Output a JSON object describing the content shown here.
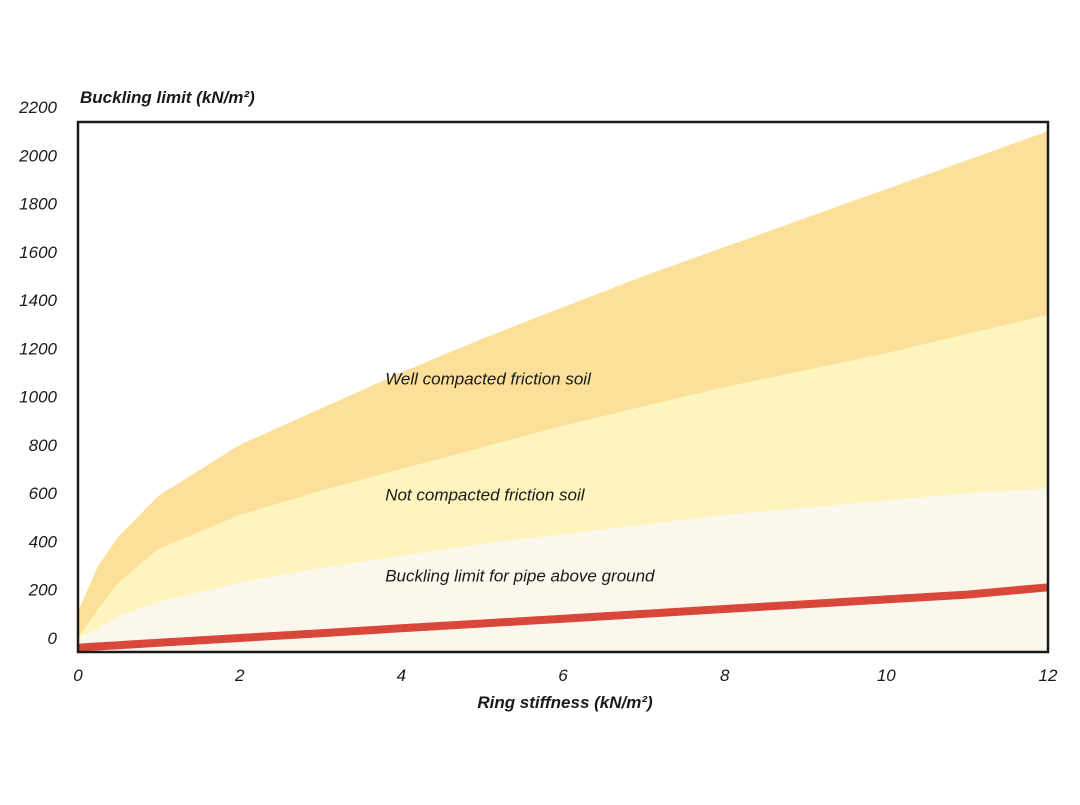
{
  "chart_data": {
    "type": "area",
    "title": "",
    "ylabel": "Buckling limit (kN/m²)",
    "xlabel": "Ring stiffness (kN/m²)",
    "xlim": [
      0,
      12
    ],
    "ylim": [
      -50,
      2200
    ],
    "x_ticks": [
      "0",
      "2",
      "4",
      "6",
      "8",
      "10",
      "12"
    ],
    "y_ticks": [
      "0",
      "200",
      "400",
      "600",
      "800",
      "1000",
      "1200",
      "1400",
      "1600",
      "1800",
      "2000",
      "2200"
    ],
    "x": [
      0,
      0.25,
      0.5,
      1,
      2,
      3,
      4,
      5,
      6,
      7,
      8,
      9,
      10,
      11,
      12
    ],
    "series": [
      {
        "name": "Well compacted friction soil",
        "color": "#fce09a",
        "values": [
          110,
          300,
          420,
          590,
          800,
          950,
          1100,
          1240,
          1370,
          1500,
          1620,
          1740,
          1860,
          1980,
          2100
        ]
      },
      {
        "name": "Not compacted friction soil",
        "color": "#fdf5bd",
        "values": [
          0,
          120,
          230,
          370,
          510,
          610,
          700,
          790,
          880,
          960,
          1040,
          1110,
          1180,
          1260,
          1340
        ]
      },
      {
        "name": "Buckling limit for pipe above ground",
        "color": "#fcf7ec",
        "values": [
          0,
          40,
          90,
          150,
          230,
          290,
          340,
          390,
          430,
          470,
          510,
          540,
          570,
          600,
          620
        ]
      },
      {
        "name": "Buckling limit for pipe above ground (line)",
        "color": "#d9473a",
        "values": [
          -40,
          -35,
          -30,
          -20,
          0,
          20,
          40,
          60,
          80,
          100,
          120,
          140,
          160,
          180,
          210
        ]
      }
    ],
    "band_labels": [
      {
        "text": "Well compacted friction soil",
        "x": 3.8,
        "y": 1050
      },
      {
        "text": "Not compacted friction soil",
        "x": 3.8,
        "y": 570
      },
      {
        "text": "Buckling limit for pipe above ground",
        "x": 3.8,
        "y": 235
      }
    ],
    "grid": false,
    "legend": "none"
  }
}
